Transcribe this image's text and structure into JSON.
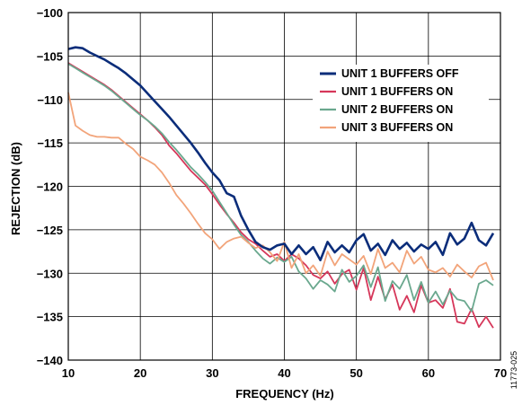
{
  "chart_data": {
    "type": "line",
    "xlabel": "FREQUENCY (Hz)",
    "ylabel": "REJECTION (dB)",
    "xlim": [
      10,
      70
    ],
    "ylim": [
      -140,
      -100
    ],
    "xticks": [
      "10",
      "20",
      "30",
      "40",
      "50",
      "60",
      "70"
    ],
    "yticks": [
      "−100",
      "−105",
      "−110",
      "−115",
      "−120",
      "−125",
      "−130",
      "−135",
      "−140"
    ],
    "grid": true,
    "legend_position": "top-right",
    "figure_id": "11773-025",
    "series": [
      {
        "name": "UNIT 1 BUFFERS OFF",
        "color": "#0b2d7a",
        "points": [
          [
            10,
            -104.2
          ],
          [
            11,
            -104.0
          ],
          [
            12,
            -104.1
          ],
          [
            13,
            -104.6
          ],
          [
            14,
            -105.0
          ],
          [
            15,
            -105.4
          ],
          [
            16,
            -105.9
          ],
          [
            17,
            -106.4
          ],
          [
            18,
            -107.0
          ],
          [
            19,
            -107.7
          ],
          [
            20,
            -108.4
          ],
          [
            21,
            -109.3
          ],
          [
            22,
            -110.2
          ],
          [
            23,
            -111.1
          ],
          [
            24,
            -112.0
          ],
          [
            25,
            -113.0
          ],
          [
            26,
            -114.0
          ],
          [
            27,
            -115.0
          ],
          [
            28,
            -116.1
          ],
          [
            29,
            -117.3
          ],
          [
            30,
            -118.4
          ],
          [
            31,
            -119.3
          ],
          [
            32,
            -120.8
          ],
          [
            33,
            -121.2
          ],
          [
            34,
            -123.4
          ],
          [
            35,
            -125.0
          ],
          [
            36,
            -126.4
          ],
          [
            37,
            -127.0
          ],
          [
            38,
            -127.3
          ],
          [
            39,
            -126.8
          ],
          [
            40,
            -126.6
          ],
          [
            41,
            -127.8
          ],
          [
            42,
            -126.8
          ],
          [
            43,
            -127.8
          ],
          [
            44,
            -127.0
          ],
          [
            45,
            -128.5
          ],
          [
            46,
            -126.4
          ],
          [
            47,
            -127.6
          ],
          [
            48,
            -126.8
          ],
          [
            49,
            -127.6
          ],
          [
            50,
            -126.2
          ],
          [
            51,
            -125.5
          ],
          [
            52,
            -127.4
          ],
          [
            53,
            -126.6
          ],
          [
            54,
            -127.9
          ],
          [
            55,
            -126.2
          ],
          [
            56,
            -127.2
          ],
          [
            57,
            -126.5
          ],
          [
            58,
            -127.5
          ],
          [
            59,
            -126.7
          ],
          [
            60,
            -127.2
          ],
          [
            61,
            -126.4
          ],
          [
            62,
            -127.9
          ],
          [
            63,
            -125.4
          ],
          [
            64,
            -126.7
          ],
          [
            65,
            -126.0
          ],
          [
            66,
            -124.2
          ],
          [
            67,
            -126.2
          ],
          [
            68,
            -126.8
          ],
          [
            69,
            -125.4
          ]
        ]
      },
      {
        "name": "UNIT 1 BUFFERS ON",
        "color": "#d6375a",
        "points": [
          [
            10,
            -105.8
          ],
          [
            11,
            -106.3
          ],
          [
            12,
            -106.8
          ],
          [
            13,
            -107.3
          ],
          [
            14,
            -107.8
          ],
          [
            15,
            -108.3
          ],
          [
            16,
            -108.9
          ],
          [
            17,
            -109.6
          ],
          [
            18,
            -110.3
          ],
          [
            19,
            -111.0
          ],
          [
            20,
            -111.7
          ],
          [
            21,
            -112.4
          ],
          [
            22,
            -113.2
          ],
          [
            23,
            -114.1
          ],
          [
            24,
            -115.3
          ],
          [
            25,
            -116.2
          ],
          [
            26,
            -117.2
          ],
          [
            27,
            -118.2
          ],
          [
            28,
            -119.0
          ],
          [
            29,
            -119.8
          ],
          [
            30,
            -120.9
          ],
          [
            31,
            -122.1
          ],
          [
            32,
            -123.2
          ],
          [
            33,
            -124.2
          ],
          [
            34,
            -125.3
          ],
          [
            35,
            -126.1
          ],
          [
            36,
            -126.6
          ],
          [
            37,
            -127.4
          ],
          [
            38,
            -128.1
          ],
          [
            39,
            -127.8
          ],
          [
            40,
            -128.6
          ],
          [
            41,
            -127.8
          ],
          [
            42,
            -128.3
          ],
          [
            43,
            -129.1
          ],
          [
            44,
            -130.2
          ],
          [
            45,
            -130.6
          ],
          [
            46,
            -129.8
          ],
          [
            47,
            -131.2
          ],
          [
            48,
            -130.1
          ],
          [
            49,
            -129.6
          ],
          [
            50,
            -131.9
          ],
          [
            51,
            -129.4
          ],
          [
            52,
            -133.1
          ],
          [
            53,
            -130.4
          ],
          [
            54,
            -133.0
          ],
          [
            55,
            -131.3
          ],
          [
            56,
            -134.2
          ],
          [
            57,
            -132.6
          ],
          [
            58,
            -134.5
          ],
          [
            59,
            -131.4
          ],
          [
            60,
            -133.4
          ],
          [
            61,
            -133.1
          ],
          [
            62,
            -134.0
          ],
          [
            63,
            -131.8
          ],
          [
            64,
            -135.6
          ],
          [
            65,
            -135.8
          ],
          [
            66,
            -134.1
          ],
          [
            67,
            -136.2
          ],
          [
            68,
            -135.0
          ],
          [
            69,
            -136.3
          ]
        ]
      },
      {
        "name": "UNIT 2 BUFFERS ON",
        "color": "#6aa88e",
        "points": [
          [
            10,
            -105.9
          ],
          [
            11,
            -106.4
          ],
          [
            12,
            -106.9
          ],
          [
            13,
            -107.4
          ],
          [
            14,
            -107.9
          ],
          [
            15,
            -108.4
          ],
          [
            16,
            -109.0
          ],
          [
            17,
            -109.7
          ],
          [
            18,
            -110.4
          ],
          [
            19,
            -111.1
          ],
          [
            20,
            -111.8
          ],
          [
            21,
            -112.4
          ],
          [
            22,
            -113.1
          ],
          [
            23,
            -113.9
          ],
          [
            24,
            -114.9
          ],
          [
            25,
            -115.8
          ],
          [
            26,
            -116.8
          ],
          [
            27,
            -117.8
          ],
          [
            28,
            -118.6
          ],
          [
            29,
            -119.5
          ],
          [
            30,
            -120.5
          ],
          [
            31,
            -121.8
          ],
          [
            32,
            -123.1
          ],
          [
            33,
            -124.4
          ],
          [
            34,
            -125.6
          ],
          [
            35,
            -126.4
          ],
          [
            36,
            -127.4
          ],
          [
            37,
            -128.3
          ],
          [
            38,
            -128.9
          ],
          [
            39,
            -128.2
          ],
          [
            40,
            -128.7
          ],
          [
            41,
            -128.1
          ],
          [
            42,
            -129.8
          ],
          [
            43,
            -130.6
          ],
          [
            44,
            -131.8
          ],
          [
            45,
            -130.8
          ],
          [
            46,
            -131.3
          ],
          [
            47,
            -132.1
          ],
          [
            48,
            -129.6
          ],
          [
            49,
            -131.0
          ],
          [
            50,
            -130.3
          ],
          [
            51,
            -129.1
          ],
          [
            52,
            -131.6
          ],
          [
            53,
            -129.3
          ],
          [
            54,
            -133.2
          ],
          [
            55,
            -130.9
          ],
          [
            56,
            -131.8
          ],
          [
            57,
            -130.2
          ],
          [
            58,
            -133.1
          ],
          [
            59,
            -131.0
          ],
          [
            60,
            -133.4
          ],
          [
            61,
            -132.1
          ],
          [
            62,
            -133.6
          ],
          [
            63,
            -132.0
          ],
          [
            64,
            -133.0
          ],
          [
            65,
            -133.2
          ],
          [
            66,
            -134.4
          ],
          [
            67,
            -131.2
          ],
          [
            68,
            -130.8
          ],
          [
            69,
            -131.4
          ]
        ]
      },
      {
        "name": "UNIT 3 BUFFERS ON",
        "color": "#f2a47a",
        "points": [
          [
            10,
            -109.2
          ],
          [
            11,
            -113.0
          ],
          [
            12,
            -113.6
          ],
          [
            13,
            -114.1
          ],
          [
            14,
            -114.3
          ],
          [
            15,
            -114.3
          ],
          [
            16,
            -114.4
          ],
          [
            17,
            -114.4
          ],
          [
            18,
            -115.1
          ],
          [
            19,
            -115.7
          ],
          [
            20,
            -116.6
          ],
          [
            21,
            -117.0
          ],
          [
            22,
            -117.5
          ],
          [
            23,
            -118.4
          ],
          [
            24,
            -119.6
          ],
          [
            25,
            -121.0
          ],
          [
            26,
            -122.0
          ],
          [
            27,
            -123.1
          ],
          [
            28,
            -124.3
          ],
          [
            29,
            -125.4
          ],
          [
            30,
            -126.1
          ],
          [
            31,
            -127.2
          ],
          [
            32,
            -126.4
          ],
          [
            33,
            -126.0
          ],
          [
            34,
            -125.8
          ],
          [
            35,
            -126.5
          ],
          [
            36,
            -127.1
          ],
          [
            37,
            -126.8
          ],
          [
            38,
            -127.6
          ],
          [
            39,
            -128.6
          ],
          [
            40,
            -126.4
          ],
          [
            41,
            -129.4
          ],
          [
            42,
            -127.8
          ],
          [
            43,
            -130.0
          ],
          [
            44,
            -129.1
          ],
          [
            45,
            -130.3
          ],
          [
            46,
            -127.5
          ],
          [
            47,
            -129.1
          ],
          [
            48,
            -127.8
          ],
          [
            49,
            -128.4
          ],
          [
            50,
            -129.0
          ],
          [
            51,
            -128.0
          ],
          [
            52,
            -130.1
          ],
          [
            53,
            -127.2
          ],
          [
            54,
            -129.4
          ],
          [
            55,
            -128.8
          ],
          [
            56,
            -129.9
          ],
          [
            57,
            -127.4
          ],
          [
            58,
            -128.9
          ],
          [
            59,
            -128.1
          ],
          [
            60,
            -129.6
          ],
          [
            61,
            -129.9
          ],
          [
            62,
            -129.4
          ],
          [
            63,
            -130.4
          ],
          [
            64,
            -129.0
          ],
          [
            65,
            -129.8
          ],
          [
            66,
            -130.5
          ],
          [
            67,
            -129.2
          ],
          [
            68,
            -128.8
          ],
          [
            69,
            -130.8
          ]
        ]
      }
    ]
  }
}
